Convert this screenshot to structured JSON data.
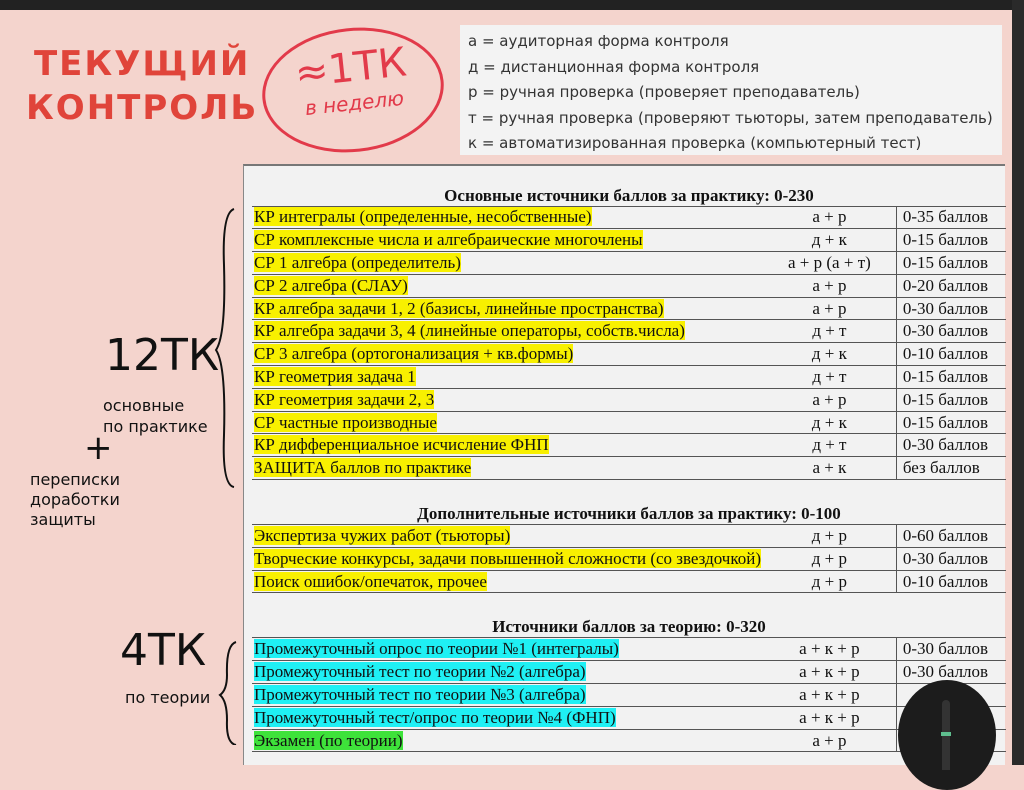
{
  "title": {
    "line1": "ТЕКУЩИЙ",
    "line2": "КОНТРОЛЬ"
  },
  "circle_note": {
    "main": "≈1ТК",
    "sub": "в неделю"
  },
  "legend": [
    "а = аудиторная форма контроля",
    "д = дистанционная форма контроля",
    "р = ручная проверка (проверяет преподаватель)",
    "т = ручная проверка (проверяют тьюторы, затем преподаватель)",
    "к = автоматизированная проверка (компьютерный тест)"
  ],
  "annotations": {
    "practice_count": "12ТК",
    "practice_label1": "основные",
    "practice_label2": "по практике",
    "plus": "+",
    "extra1": "переписки",
    "extra2": "доработки",
    "extra3": "защиты",
    "theory_count": "4ТК",
    "theory_label": "по теории"
  },
  "sections": [
    {
      "header": "Основные источники баллов за практику: 0-230",
      "highlight": "yellow",
      "rows": [
        [
          "КР интегралы (определенные, несобственные)",
          "а + р",
          "0-35 баллов"
        ],
        [
          "СР комплексные числа и алгебраические многочлены",
          "д + к",
          "0-15 баллов"
        ],
        [
          "СР 1 алгебра (определитель)",
          "а + р (а + т)",
          "0-15 баллов"
        ],
        [
          "СР 2 алгебра (СЛАУ)",
          "а + р",
          "0-20 баллов"
        ],
        [
          "КР алгебра задачи 1, 2 (базисы, линейные пространства)",
          "а + р",
          "0-30 баллов"
        ],
        [
          "КР алгебра задачи 3, 4 (линейные операторы, собств.числа)",
          "д + т",
          "0-30 баллов"
        ],
        [
          "СР 3 алгебра (ортогонализация + кв.формы)",
          "д + к",
          "0-10 баллов"
        ],
        [
          "КР геометрия задача 1",
          "д + т",
          "0-15 баллов"
        ],
        [
          "КР геометрия задачи 2, 3",
          "а + р",
          "0-15 баллов"
        ],
        [
          "СР частные производные",
          "д + к",
          "0-15 баллов"
        ],
        [
          "КР дифференциальное исчисление ФНП",
          "д + т",
          "0-30 баллов"
        ],
        [
          "ЗАЩИТА баллов по практике",
          "а + к",
          "без баллов"
        ]
      ]
    },
    {
      "header": "Дополнительные источники баллов за практику: 0-100",
      "highlight": "yellow",
      "rows": [
        [
          "Экспертиза чужих работ (тьюторы)",
          "д + р",
          "0-60 баллов"
        ],
        [
          "Творческие конкурсы, задачи повышенной сложности (со звездочкой)",
          "д + р",
          "0-30 баллов"
        ],
        [
          "Поиск ошибок/опечаток, прочее",
          "д + р",
          "0-10 баллов"
        ]
      ]
    },
    {
      "header": "Источники баллов за теорию: 0-320",
      "highlight": "cyan",
      "rows": [
        [
          "Промежуточный опрос по теории №1 (интегралы)",
          "а + к + р",
          "0-30 баллов"
        ],
        [
          "Промежуточный тест по теории №2 (алгебра)",
          "а + к + р",
          "0-30 баллов"
        ],
        [
          "Промежуточный тест по теории №3 (алгебра)",
          "а + к + р",
          ""
        ],
        [
          "Промежуточный тест/опрос по теории №4 (ФНП)",
          "а + к + р",
          ""
        ],
        [
          "Экзамен (по теории)",
          "а + р",
          ""
        ]
      ]
    }
  ],
  "colors": {
    "yellow": "#f8f000",
    "cyan": "#1ff0f4",
    "green": "#3ee23a",
    "title_red": "#e0443a"
  }
}
